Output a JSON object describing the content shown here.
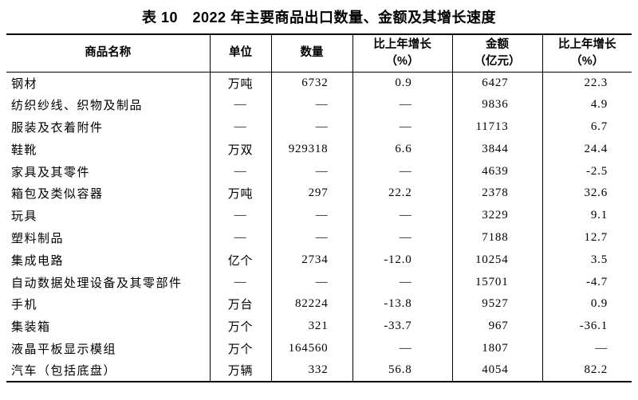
{
  "title": "表 10　2022 年主要商品出口数量、金额及其增长速度",
  "table": {
    "headers": [
      {
        "label": "商品名称",
        "sub": ""
      },
      {
        "label": "单位",
        "sub": ""
      },
      {
        "label": "数量",
        "sub": ""
      },
      {
        "label": "比上年增长",
        "sub": "（%）"
      },
      {
        "label": "金额",
        "sub": "（亿元）"
      },
      {
        "label": "比上年增长",
        "sub": "（%）"
      }
    ],
    "column_keys": [
      "name",
      "unit",
      "quantity",
      "quantity_growth_pct",
      "amount_yi_yuan",
      "amount_growth_pct"
    ],
    "rows": [
      [
        "钢材",
        "万吨",
        "6732",
        "0.9",
        "6427",
        "22.3"
      ],
      [
        "纺织纱线、织物及制品",
        "—",
        "—",
        "—",
        "9836",
        "4.9"
      ],
      [
        "服装及衣着附件",
        "—",
        "—",
        "—",
        "11713",
        "6.7"
      ],
      [
        "鞋靴",
        "万双",
        "929318",
        "6.6",
        "3844",
        "24.4"
      ],
      [
        "家具及其零件",
        "—",
        "—",
        "—",
        "4639",
        "-2.5"
      ],
      [
        "箱包及类似容器",
        "万吨",
        "297",
        "22.2",
        "2378",
        "32.6"
      ],
      [
        "玩具",
        "—",
        "—",
        "—",
        "3229",
        "9.1"
      ],
      [
        "塑料制品",
        "—",
        "—",
        "—",
        "7188",
        "12.7"
      ],
      [
        "集成电路",
        "亿个",
        "2734",
        "-12.0",
        "10254",
        "3.5"
      ],
      [
        "自动数据处理设备及其零部件",
        "—",
        "—",
        "—",
        "15701",
        "-4.7"
      ],
      [
        "手机",
        "万台",
        "82224",
        "-13.8",
        "9527",
        "0.9"
      ],
      [
        "集装箱",
        "万个",
        "321",
        "-33.7",
        "967",
        "-36.1"
      ],
      [
        "液晶平板显示模组",
        "万个",
        "164560",
        "—",
        "1807",
        "—"
      ],
      [
        "汽车（包括底盘）",
        "万辆",
        "332",
        "56.8",
        "4054",
        "82.2"
      ]
    ]
  },
  "colors": {
    "text": "#000000",
    "background": "#ffffff",
    "rule": "#000000"
  }
}
